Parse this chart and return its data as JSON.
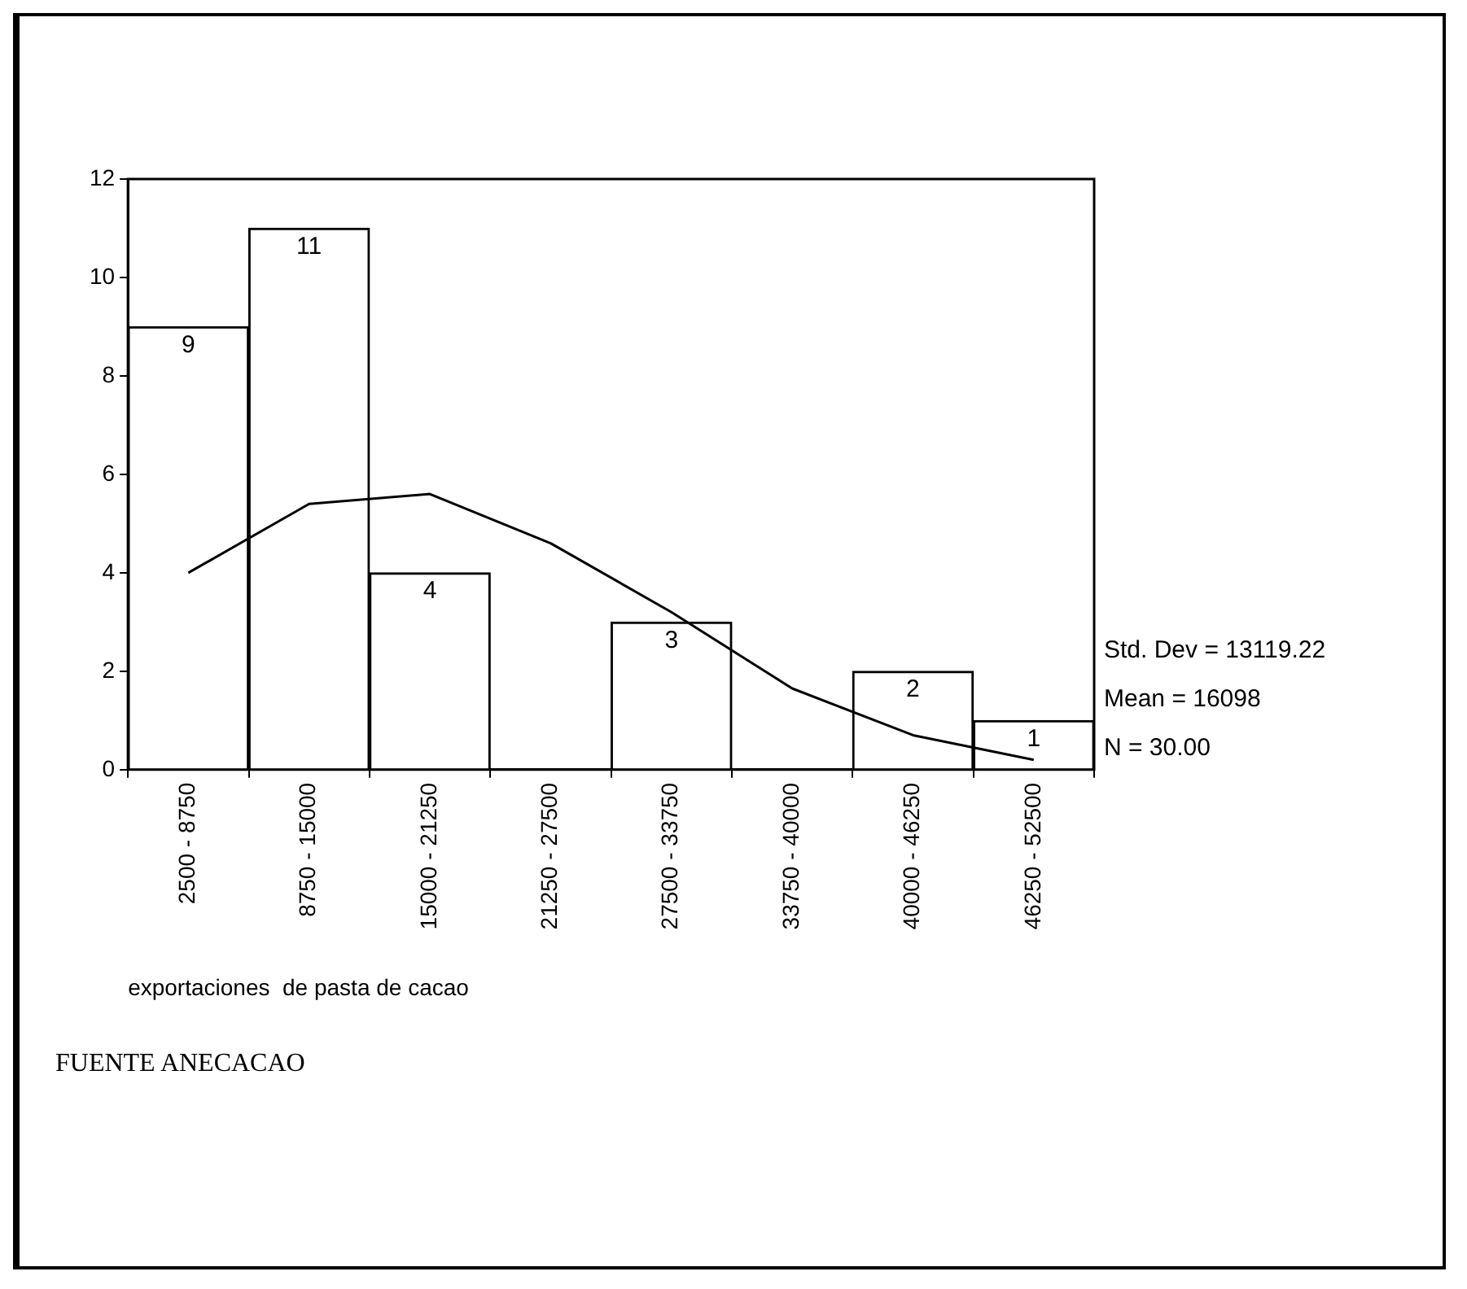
{
  "chart_data": {
    "type": "bar",
    "xlabel": "exportaciones  de pasta de cacao",
    "categories": [
      "2500 - 8750",
      "8750 - 15000",
      "15000 - 21250",
      "21250 - 27500",
      "27500 - 33750",
      "33750 - 40000",
      "40000 - 46250",
      "46250 - 52500"
    ],
    "values": [
      9,
      11,
      4,
      0,
      3,
      0,
      2,
      1
    ],
    "value_labels": [
      "9",
      "11",
      "4",
      null,
      "3",
      null,
      "2",
      "1"
    ],
    "color": "#ffffff",
    "series": [
      {
        "type": "line",
        "color": "#000000",
        "values": [
          4.0,
          5.4,
          5.6,
          4.6,
          3.2,
          1.65,
          0.7,
          0.2
        ]
      }
    ],
    "ylim": [
      0,
      12
    ],
    "yticks": [
      0,
      2,
      4,
      6,
      8,
      10,
      12
    ],
    "grid": false,
    "legend": false,
    "marker": "none",
    "annotations": [
      "Std. Dev = 13119.22",
      "Mean = 16098",
      "N = 30.00",
      "FUENTE ANECACAO"
    ]
  }
}
